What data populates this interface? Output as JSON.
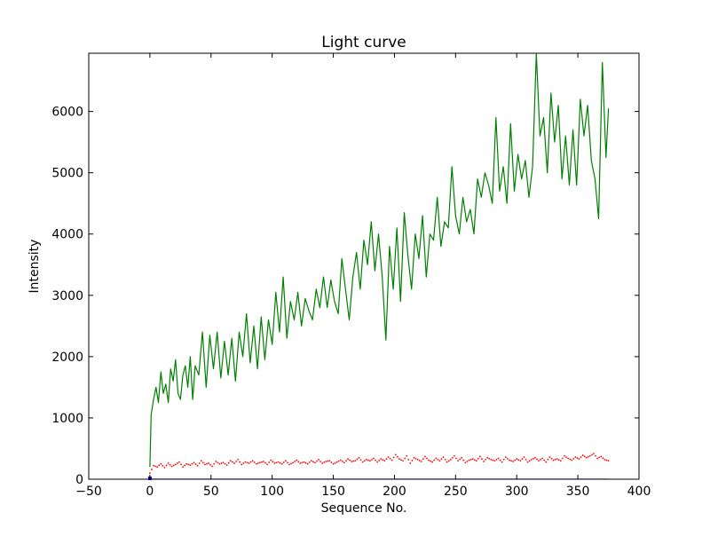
{
  "chart_data": {
    "type": "line",
    "title": "Light curve",
    "xlabel": "Sequence No.",
    "ylabel": "Intensity",
    "xlim": [
      -50,
      400
    ],
    "ylim": [
      0,
      6950
    ],
    "xticks": [
      -50,
      0,
      50,
      100,
      150,
      200,
      250,
      300,
      350,
      400
    ],
    "yticks": [
      0,
      1000,
      2000,
      3000,
      4000,
      5000,
      6000
    ],
    "xtick_labels": [
      "−50",
      "0",
      "50",
      "100",
      "150",
      "200",
      "250",
      "300",
      "350",
      "400"
    ],
    "ytick_labels": [
      "0",
      "1000",
      "2000",
      "3000",
      "4000",
      "5000",
      "6000"
    ],
    "grid": false,
    "legend": "none",
    "series": [
      {
        "style": "solid-line",
        "color": "#008000",
        "x": [
          0,
          1,
          3,
          5,
          7,
          9,
          11,
          13,
          15,
          17,
          19,
          21,
          23,
          25,
          27,
          29,
          31,
          33,
          35,
          37,
          40,
          43,
          46,
          49,
          52,
          55,
          58,
          61,
          64,
          67,
          70,
          73,
          76,
          79,
          82,
          85,
          88,
          91,
          94,
          97,
          100,
          103,
          106,
          109,
          112,
          115,
          118,
          121,
          124,
          127,
          130,
          133,
          136,
          139,
          142,
          145,
          148,
          151,
          154,
          157,
          160,
          163,
          166,
          169,
          172,
          175,
          178,
          181,
          184,
          187,
          190,
          193,
          196,
          199,
          202,
          205,
          208,
          211,
          214,
          217,
          220,
          223,
          226,
          229,
          232,
          235,
          238,
          241,
          244,
          247,
          250,
          253,
          256,
          259,
          262,
          265,
          268,
          271,
          274,
          277,
          280,
          283,
          286,
          289,
          292,
          295,
          298,
          301,
          304,
          307,
          310,
          313,
          316,
          319,
          322,
          325,
          328,
          331,
          334,
          337,
          340,
          343,
          346,
          349,
          352,
          355,
          358,
          361,
          364,
          367,
          370,
          373,
          375
        ],
        "y": [
          200,
          1050,
          1300,
          1500,
          1250,
          1750,
          1400,
          1550,
          1250,
          1800,
          1600,
          1950,
          1400,
          1300,
          1700,
          1850,
          1500,
          2000,
          1300,
          1850,
          1700,
          2400,
          1500,
          2350,
          1800,
          2400,
          1650,
          2250,
          1700,
          2300,
          1600,
          2400,
          2000,
          2700,
          1900,
          2500,
          1800,
          2650,
          1950,
          2600,
          2200,
          3050,
          2400,
          3300,
          2300,
          2900,
          2600,
          3050,
          2500,
          2950,
          2750,
          2600,
          3100,
          2800,
          3300,
          2800,
          3250,
          2900,
          2700,
          3600,
          3100,
          2600,
          3300,
          3700,
          3100,
          3900,
          3500,
          4200,
          3400,
          4000,
          3300,
          2270,
          3800,
          3100,
          4100,
          2900,
          4350,
          3650,
          3100,
          4000,
          3600,
          4300,
          3300,
          4000,
          3900,
          4600,
          3800,
          4200,
          4100,
          5100,
          4300,
          4000,
          4600,
          4200,
          4400,
          4000,
          4900,
          4600,
          5000,
          4800,
          4500,
          5900,
          4700,
          5100,
          4500,
          5800,
          4700,
          5300,
          4900,
          5200,
          4600,
          5100,
          6950,
          5600,
          5900,
          5000,
          6300,
          5500,
          6100,
          4900,
          5600,
          4800,
          5700,
          4800,
          6200,
          5600,
          6100,
          5200,
          4900,
          4250,
          6800,
          5250,
          6050
        ]
      },
      {
        "style": "dotted",
        "color": "#ff0000",
        "x": [
          0,
          3,
          6,
          9,
          12,
          15,
          18,
          21,
          24,
          27,
          30,
          33,
          36,
          39,
          42,
          45,
          48,
          51,
          54,
          57,
          60,
          63,
          66,
          69,
          72,
          75,
          78,
          81,
          84,
          87,
          90,
          93,
          96,
          99,
          102,
          105,
          108,
          111,
          114,
          117,
          120,
          123,
          126,
          129,
          132,
          135,
          138,
          141,
          144,
          147,
          150,
          153,
          156,
          159,
          162,
          165,
          168,
          171,
          174,
          177,
          180,
          183,
          186,
          189,
          192,
          195,
          198,
          201,
          204,
          207,
          210,
          213,
          216,
          219,
          222,
          225,
          228,
          231,
          234,
          237,
          240,
          243,
          246,
          249,
          252,
          255,
          258,
          261,
          264,
          267,
          270,
          273,
          276,
          279,
          282,
          285,
          288,
          291,
          294,
          297,
          300,
          303,
          306,
          309,
          312,
          315,
          318,
          321,
          324,
          327,
          330,
          333,
          336,
          339,
          342,
          345,
          348,
          351,
          354,
          357,
          360,
          363,
          366,
          369,
          372,
          375
        ],
        "y": [
          100,
          220,
          200,
          250,
          190,
          260,
          210,
          240,
          280,
          200,
          250,
          230,
          270,
          220,
          300,
          240,
          260,
          210,
          290,
          250,
          270,
          230,
          300,
          260,
          320,
          240,
          280,
          260,
          300,
          250,
          270,
          290,
          240,
          310,
          260,
          280,
          250,
          300,
          240,
          270,
          310,
          260,
          280,
          250,
          300,
          270,
          320,
          260,
          290,
          300,
          250,
          280,
          310,
          270,
          330,
          290,
          300,
          350,
          280,
          320,
          300,
          340,
          280,
          330,
          300,
          360,
          310,
          400,
          330,
          300,
          380,
          260,
          350,
          320,
          290,
          370,
          310,
          280,
          340,
          300,
          360,
          280,
          320,
          380,
          300,
          350,
          270,
          310,
          330,
          300,
          370,
          290,
          350,
          320,
          300,
          340,
          280,
          360,
          310,
          290,
          330,
          300,
          360,
          280,
          320,
          350,
          300,
          340,
          280,
          360,
          310,
          330,
          300,
          380,
          340,
          310,
          360,
          330,
          390,
          350,
          380,
          420,
          340,
          370,
          320,
          300
        ]
      },
      {
        "style": "solid-line",
        "color": "#0000ff",
        "x": [
          0,
          375
        ],
        "y": [
          0,
          0
        ]
      }
    ]
  }
}
